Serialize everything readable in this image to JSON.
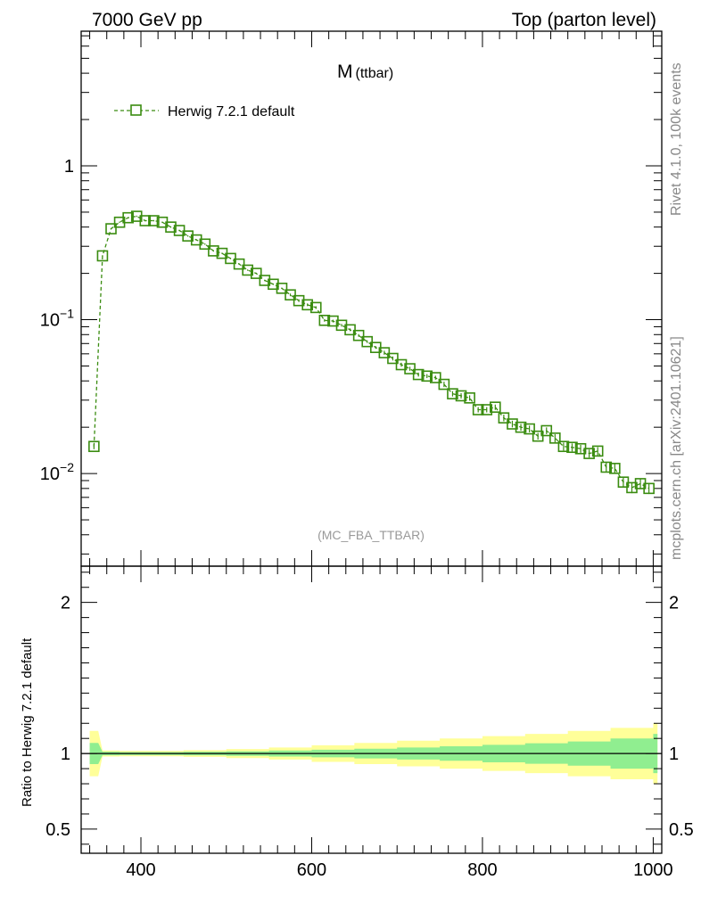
{
  "header": {
    "left": "7000 GeV pp",
    "right": "Top (parton level)"
  },
  "side_labels": {
    "top": "Rivet 4.1.0,  100k events",
    "bottom": "mcplots.cern.ch [arXiv:2401.10621]"
  },
  "chart_data": [
    {
      "type": "line",
      "panel": "main",
      "title_main": "M",
      "title_sub": "(ttbar)",
      "watermark": "(MC_FBA_TTBAR)",
      "xlabel": "",
      "ylabel": "",
      "yscale": "log",
      "xlim": [
        330,
        1010
      ],
      "ylim": [
        0.0025,
        7.5
      ],
      "yticks": [
        {
          "value": 0.01,
          "base": "10",
          "exp": "−2"
        },
        {
          "value": 0.1,
          "base": "10",
          "exp": "−1"
        },
        {
          "value": 1,
          "base": "1",
          "exp": ""
        }
      ],
      "legend": {
        "position": "top-left",
        "entries": [
          "Herwig 7.2.1 default"
        ]
      },
      "series": [
        {
          "name": "Herwig 7.2.1 default",
          "color": "#3a8c10",
          "marker": "open-square",
          "linestyle": "dashed",
          "x": [
            345,
            355,
            365,
            375,
            385,
            395,
            405,
            415,
            425,
            435,
            445,
            455,
            465,
            475,
            485,
            495,
            505,
            515,
            525,
            535,
            545,
            555,
            565,
            575,
            585,
            595,
            605,
            615,
            625,
            635,
            645,
            655,
            665,
            675,
            685,
            695,
            705,
            715,
            725,
            735,
            745,
            755,
            765,
            775,
            785,
            795,
            805,
            815,
            825,
            835,
            845,
            855,
            865,
            875,
            885,
            895,
            905,
            915,
            925,
            935,
            945,
            955,
            965,
            975,
            985,
            995
          ],
          "y": [
            0.015,
            0.26,
            0.39,
            0.43,
            0.46,
            0.47,
            0.44,
            0.44,
            0.43,
            0.4,
            0.38,
            0.35,
            0.33,
            0.31,
            0.28,
            0.27,
            0.25,
            0.23,
            0.21,
            0.2,
            0.18,
            0.17,
            0.16,
            0.145,
            0.133,
            0.125,
            0.12,
            0.099,
            0.098,
            0.092,
            0.086,
            0.079,
            0.072,
            0.066,
            0.061,
            0.056,
            0.051,
            0.048,
            0.044,
            0.043,
            0.042,
            0.038,
            0.033,
            0.032,
            0.031,
            0.026,
            0.026,
            0.027,
            0.023,
            0.021,
            0.02,
            0.0195,
            0.0175,
            0.019,
            0.017,
            0.015,
            0.0148,
            0.0145,
            0.0135,
            0.014,
            0.011,
            0.0108,
            0.0088,
            0.0081,
            0.0086,
            0.008
          ],
          "yerr_rel": [
            0.04,
            0.01,
            0.01,
            0.01,
            0.01,
            0.01,
            0.01,
            0.01,
            0.01,
            0.01,
            0.01,
            0.01,
            0.01,
            0.01,
            0.01,
            0.01,
            0.01,
            0.01,
            0.01,
            0.01,
            0.01,
            0.01,
            0.01,
            0.02,
            0.02,
            0.02,
            0.02,
            0.02,
            0.02,
            0.02,
            0.02,
            0.02,
            0.02,
            0.02,
            0.03,
            0.03,
            0.03,
            0.03,
            0.03,
            0.03,
            0.03,
            0.04,
            0.04,
            0.04,
            0.04,
            0.04,
            0.04,
            0.04,
            0.05,
            0.05,
            0.05,
            0.05,
            0.05,
            0.05,
            0.06,
            0.06,
            0.06,
            0.06,
            0.06,
            0.06,
            0.07,
            0.07,
            0.07,
            0.08,
            0.08,
            0.08
          ]
        }
      ]
    },
    {
      "type": "area",
      "panel": "ratio",
      "xlabel": "",
      "ylabel": "Ratio to Herwig 7.2.1 default",
      "yscale": "linear",
      "xlim": [
        330,
        1010
      ],
      "ylim": [
        0.34,
        2.24
      ],
      "xticks": [
        400,
        600,
        800,
        1000
      ],
      "yticks": [
        0.5,
        1,
        2
      ],
      "reference_line": 1,
      "series": [
        {
          "name": "stat. uncertainty",
          "color": "#90ee90",
          "x": [
            345,
            355,
            375,
            400,
            450,
            500,
            550,
            600,
            650,
            700,
            750,
            800,
            850,
            900,
            950,
            1000
          ],
          "upper": [
            1.07,
            1.012,
            1.01,
            1.01,
            1.012,
            1.015,
            1.02,
            1.025,
            1.032,
            1.04,
            1.048,
            1.058,
            1.068,
            1.08,
            1.1,
            1.13
          ],
          "lower": [
            0.93,
            0.988,
            0.99,
            0.99,
            0.988,
            0.985,
            0.98,
            0.975,
            0.968,
            0.96,
            0.952,
            0.942,
            0.932,
            0.92,
            0.9,
            0.87
          ]
        },
        {
          "name": "total uncertainty",
          "color": "#ffff99",
          "x": [
            345,
            355,
            375,
            400,
            450,
            500,
            550,
            600,
            650,
            700,
            750,
            800,
            850,
            900,
            950,
            1000
          ],
          "upper": [
            1.15,
            1.02,
            1.018,
            1.018,
            1.022,
            1.03,
            1.04,
            1.055,
            1.07,
            1.085,
            1.1,
            1.115,
            1.13,
            1.15,
            1.17,
            1.2
          ],
          "lower": [
            0.85,
            0.98,
            0.982,
            0.982,
            0.978,
            0.97,
            0.96,
            0.945,
            0.93,
            0.915,
            0.9,
            0.885,
            0.87,
            0.85,
            0.83,
            0.8
          ]
        }
      ]
    }
  ]
}
